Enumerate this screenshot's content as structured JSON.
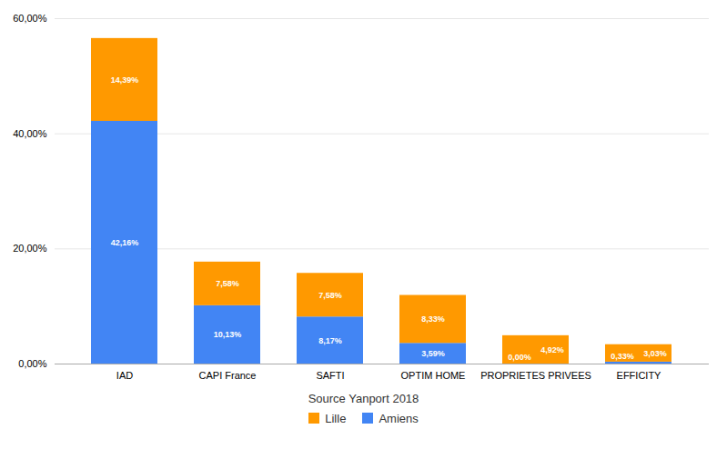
{
  "chart_data": {
    "type": "bar",
    "stacked": true,
    "title": "Source Yanport 2018",
    "categories": [
      "IAD",
      "CAPI France",
      "SAFTI",
      "OPTIM HOME",
      "PROPRIETES PRIVEES",
      "EFFICITY"
    ],
    "series": [
      {
        "name": "Amiens",
        "color": "#4285F4",
        "values": [
          42.16,
          10.13,
          8.17,
          3.59,
          0.0,
          0.33
        ],
        "value_labels": [
          "42,16%",
          "10,13%",
          "8,17%",
          "3,59%",
          "0,00%",
          "0,33%"
        ]
      },
      {
        "name": "Lille",
        "color": "#FF9900",
        "values": [
          14.39,
          7.58,
          7.58,
          8.33,
          4.92,
          3.03
        ],
        "value_labels": [
          "14,39%",
          "7,58%",
          "7,58%",
          "8,33%",
          "4,92%",
          "3,03%"
        ]
      }
    ],
    "ylim": [
      0,
      60
    ],
    "yticks": [
      {
        "value": 0,
        "label": "0,00%"
      },
      {
        "value": 20,
        "label": "20,00%"
      },
      {
        "value": 40,
        "label": "40,00%"
      },
      {
        "value": 60,
        "label": "60,00%"
      }
    ],
    "grid": true,
    "legend": "bottom",
    "data_labels": true
  }
}
